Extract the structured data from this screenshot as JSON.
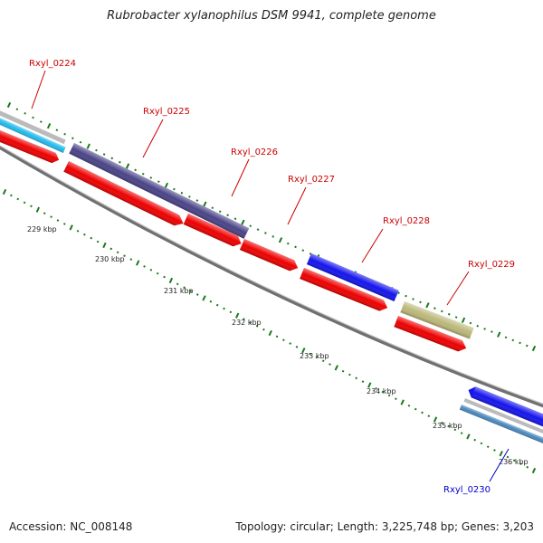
{
  "title": "Rubrobacter xylanophilus DSM 9941, complete genome",
  "accession": "Accession: NC_008148",
  "summary": "Topology: circular; Length: 3,225,748 bp; Genes: 3,203",
  "colors": {
    "label_red": "#cc0000",
    "label_blue": "#0000cc",
    "tick_green": "#1a7a1a",
    "backbone": "#808080",
    "gene_red": "#ee0000",
    "gene_purple": "#4a4488",
    "gene_blue": "#1515ee",
    "gene_olive": "#bcb87a",
    "gene_cyan": "#22bbee",
    "gene_steel": "#4a88bb",
    "gene_grey": "#bbbbbb"
  },
  "genes": [
    {
      "name": "Rxyl_0224",
      "color": "#cc0000"
    },
    {
      "name": "Rxyl_0225",
      "color": "#cc0000"
    },
    {
      "name": "Rxyl_0226",
      "color": "#cc0000"
    },
    {
      "name": "Rxyl_0227",
      "color": "#cc0000"
    },
    {
      "name": "Rxyl_0228",
      "color": "#cc0000"
    },
    {
      "name": "Rxyl_0229",
      "color": "#cc0000"
    },
    {
      "name": "Rxyl_0230",
      "color": "#0000cc"
    }
  ],
  "kbp_labels": [
    "229 kbp",
    "230 kbp",
    "231 kbp",
    "232 kbp",
    "233 kbp",
    "234 kbp",
    "235 kbp",
    "236 kbp"
  ]
}
